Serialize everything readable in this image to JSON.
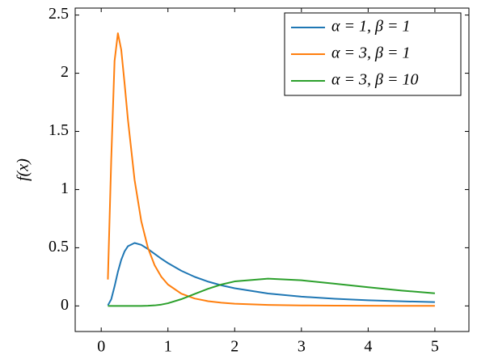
{
  "chart_data": {
    "type": "line",
    "ylabel": "f(x)",
    "x": [
      0.1,
      0.15,
      0.2,
      0.25,
      0.3,
      0.35,
      0.4,
      0.5,
      0.6,
      0.7,
      0.8,
      0.9,
      1.0,
      1.2,
      1.4,
      1.6,
      1.8,
      2.0,
      2.5,
      3.0,
      3.5,
      4.0,
      4.5,
      5.0
    ],
    "series": [
      {
        "name": "α = 1, β = 1",
        "color": "#1f77b4",
        "values": [
          0.0045,
          0.0566,
          0.168,
          0.293,
          0.396,
          0.469,
          0.513,
          0.541,
          0.525,
          0.489,
          0.448,
          0.406,
          0.368,
          0.302,
          0.25,
          0.209,
          0.177,
          0.152,
          0.107,
          0.0796,
          0.0613,
          0.0487,
          0.0395,
          0.0327
        ]
      },
      {
        "name": "α = 3, β = 1",
        "color": "#ff7f0e",
        "values": [
          0.227,
          1.257,
          2.106,
          2.344,
          2.202,
          1.913,
          1.603,
          1.083,
          0.729,
          0.499,
          0.35,
          0.251,
          0.184,
          0.105,
          0.0637,
          0.0408,
          0.0273,
          0.019,
          0.0086,
          0.0044,
          0.0025,
          0.0015,
          0.001,
          0.0007
        ]
      },
      {
        "name": "α = 3, β = 10",
        "color": "#2ca02c",
        "values": [
          0,
          0,
          0,
          0,
          0,
          0,
          0,
          0,
          0.0002,
          0.0013,
          0.0046,
          0.0114,
          0.0227,
          0.0579,
          0.103,
          0.147,
          0.184,
          0.2106,
          0.2345,
          0.2202,
          0.1913,
          0.1603,
          0.1322,
          0.1083
        ]
      }
    ],
    "xlim": [
      -0.39,
      5.51
    ],
    "xticks": [
      0,
      1,
      2,
      3,
      4,
      5
    ],
    "ylim": [
      -0.22,
      2.56
    ],
    "yticks": [
      0,
      0.5,
      1,
      1.5,
      2,
      2.5
    ],
    "legend": "upper right"
  }
}
